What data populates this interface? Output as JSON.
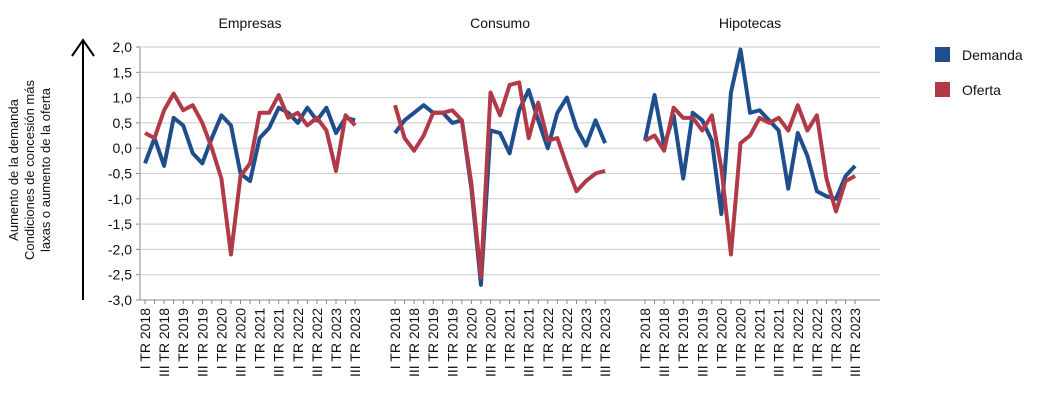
{
  "chart_data": [
    {
      "type": "line",
      "title": "Empresas",
      "ylabel": [
        "Aumento de la demanda",
        "Condiciones de concesión más",
        "laxas o aumento de la oferta"
      ],
      "ylim": [
        -3,
        2
      ],
      "yticks": [
        {
          "value": 2,
          "label": "2,0"
        },
        {
          "value": 1.5,
          "label": "1,5"
        },
        {
          "value": 1,
          "label": "1,0"
        },
        {
          "value": 0.5,
          "label": "0,5"
        },
        {
          "value": 0,
          "label": "0,0"
        },
        {
          "value": -0.5,
          "label": "-0,5"
        },
        {
          "value": -1,
          "label": "-1,0"
        },
        {
          "value": -1.5,
          "label": "-1,5"
        },
        {
          "value": -2,
          "label": "-2,0"
        },
        {
          "value": -2.5,
          "label": "-2,5"
        },
        {
          "value": -3,
          "label": "-3,0"
        }
      ],
      "grid": true,
      "categories": [
        "I TR 2018",
        null,
        "III TR 2018",
        null,
        "I TR 2019",
        null,
        "III TR 2019",
        null,
        "I TR 2020",
        null,
        "III TR 2020",
        null,
        "I TR 2021",
        null,
        "III TR 2021",
        null,
        "I TR 2022",
        null,
        "III TR 2022",
        null,
        "I TR 2023",
        null,
        "III TR 2023"
      ],
      "series": [
        {
          "name": "Demanda",
          "color": "#1f4e8c",
          "values": [
            -0.3,
            0.2,
            -0.35,
            0.6,
            0.45,
            -0.1,
            -0.3,
            0.2,
            0.65,
            0.45,
            -0.5,
            -0.65,
            0.2,
            0.4,
            0.8,
            0.7,
            0.5,
            0.8,
            0.55,
            0.8,
            0.3,
            0.6,
            0.55
          ]
        },
        {
          "name": "Oferta",
          "color": "#b03a48",
          "values": [
            0.3,
            0.2,
            0.75,
            1.08,
            0.75,
            0.85,
            0.5,
            0.0,
            -0.6,
            -2.1,
            -0.55,
            -0.3,
            0.7,
            0.7,
            1.05,
            0.6,
            0.7,
            0.45,
            0.6,
            0.35,
            -0.45,
            0.65,
            0.45
          ]
        }
      ]
    },
    {
      "type": "line",
      "title": "Consumo",
      "categories": [
        "I TR 2018",
        null,
        "III TR 2018",
        null,
        "I TR 2019",
        null,
        "III TR 2019",
        null,
        "I TR 2020",
        null,
        "III TR 2020",
        null,
        "I TR 2021",
        null,
        "III TR 2021",
        null,
        "I TR 2022",
        null,
        "III TR 2022",
        null,
        "I TR 2023",
        null,
        "III TR 2023"
      ],
      "series": [
        {
          "name": "Demanda",
          "color": "#1f4e8c",
          "values": [
            0.3,
            0.55,
            0.7,
            0.85,
            0.7,
            0.7,
            0.5,
            0.55,
            -0.8,
            -2.7,
            0.35,
            0.3,
            -0.1,
            0.75,
            1.15,
            0.55,
            0.0,
            0.7,
            1.0,
            0.4,
            0.05,
            0.55,
            0.1
          ]
        },
        {
          "name": "Oferta",
          "color": "#b03a48",
          "values": [
            0.85,
            0.2,
            -0.05,
            0.25,
            0.7,
            0.7,
            0.75,
            0.55,
            -0.7,
            -2.55,
            1.1,
            0.65,
            1.25,
            1.3,
            0.2,
            0.9,
            0.15,
            0.2,
            -0.35,
            -0.85,
            -0.65,
            -0.5,
            -0.45
          ]
        }
      ]
    },
    {
      "type": "line",
      "title": "Hipotecas",
      "categories": [
        "I TR 2018",
        null,
        "III TR 2018",
        null,
        "I TR 2019",
        null,
        "III TR 2019",
        null,
        "I TR 2020",
        null,
        "III TR 2020",
        null,
        "I TR 2021",
        null,
        "III TR 2021",
        null,
        "I TR 2022",
        null,
        "III TR 2022",
        null,
        "I TR 2023",
        null,
        "III TR 2023"
      ],
      "series": [
        {
          "name": "Demanda",
          "color": "#1f4e8c",
          "values": [
            0.15,
            1.05,
            0.05,
            0.65,
            -0.6,
            0.7,
            0.55,
            0.15,
            -1.3,
            1.1,
            1.95,
            0.7,
            0.75,
            0.55,
            0.35,
            -0.8,
            0.3,
            -0.15,
            -0.85,
            -0.95,
            -1.0,
            -0.55,
            -0.35
          ]
        },
        {
          "name": "Oferta",
          "color": "#b03a48",
          "values": [
            0.15,
            0.25,
            -0.05,
            0.8,
            0.6,
            0.6,
            0.35,
            0.65,
            -0.4,
            -2.1,
            0.1,
            0.25,
            0.6,
            0.5,
            0.6,
            0.35,
            0.85,
            0.35,
            0.65,
            -0.6,
            -1.25,
            -0.65,
            -0.55
          ]
        }
      ]
    }
  ]
}
